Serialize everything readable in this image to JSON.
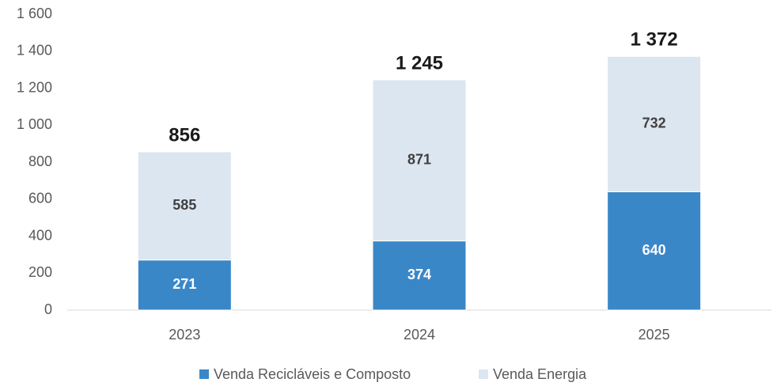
{
  "chart_data": {
    "type": "stacked_bar",
    "categories": [
      "2023",
      "2024",
      "2025"
    ],
    "series": [
      {
        "name": "Venda Recicláveis e Composto",
        "color": "#3a87c8",
        "values": [
          271,
          374,
          640
        ]
      },
      {
        "name": "Venda Energia",
        "color": "#dce6f1",
        "values": [
          585,
          871,
          732
        ]
      }
    ],
    "totals": [
      856,
      1245,
      1372
    ],
    "total_labels": [
      "856",
      "1 245",
      "1 372"
    ],
    "ylim": [
      0,
      1600
    ],
    "yticks": [
      0,
      200,
      400,
      600,
      800,
      {
        "value": 1000,
        "label": "1 000"
      },
      {
        "value": 1200,
        "label": "1 200"
      },
      {
        "value": 1400,
        "label": "1 400"
      },
      {
        "value": 1600,
        "label": "1 600"
      }
    ],
    "grid": false,
    "legend": "bottom"
  }
}
